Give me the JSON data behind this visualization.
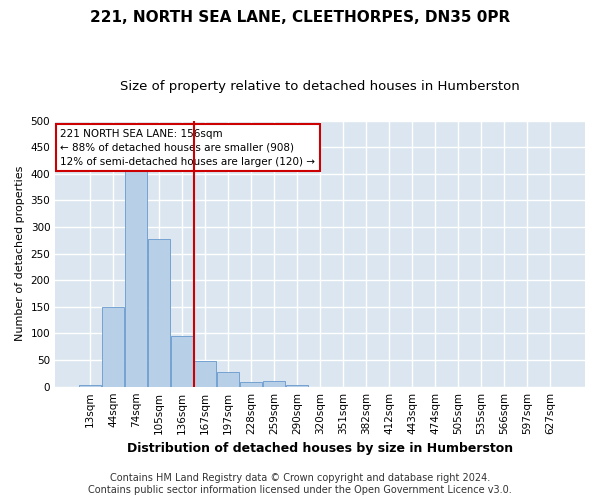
{
  "title": "221, NORTH SEA LANE, CLEETHORPES, DN35 0PR",
  "subtitle": "Size of property relative to detached houses in Humberston",
  "xlabel": "Distribution of detached houses by size in Humberston",
  "ylabel": "Number of detached properties",
  "categories": [
    "13sqm",
    "44sqm",
    "74sqm",
    "105sqm",
    "136sqm",
    "167sqm",
    "197sqm",
    "228sqm",
    "259sqm",
    "290sqm",
    "320sqm",
    "351sqm",
    "382sqm",
    "412sqm",
    "443sqm",
    "474sqm",
    "505sqm",
    "535sqm",
    "566sqm",
    "597sqm",
    "627sqm"
  ],
  "values": [
    4,
    150,
    420,
    278,
    95,
    48,
    28,
    8,
    10,
    4,
    0,
    0,
    0,
    0,
    0,
    0,
    0,
    0,
    0,
    0,
    0
  ],
  "bar_color": "#b8cfe8",
  "bar_edge_color": "#6699cc",
  "vline_x": 4.5,
  "vline_color": "#cc0000",
  "annotation_line1": "221 NORTH SEA LANE: 156sqm",
  "annotation_line2": "← 88% of detached houses are smaller (908)",
  "annotation_line3": "12% of semi-detached houses are larger (120) →",
  "annotation_box_color": "#ffffff",
  "annotation_box_edge": "#cc0000",
  "ylim": [
    0,
    500
  ],
  "yticks": [
    0,
    50,
    100,
    150,
    200,
    250,
    300,
    350,
    400,
    450,
    500
  ],
  "footer": "Contains HM Land Registry data © Crown copyright and database right 2024.\nContains public sector information licensed under the Open Government Licence v3.0.",
  "fig_bg_color": "#ffffff",
  "plot_bg_color": "#dce6f0",
  "grid_color": "#ffffff",
  "title_fontsize": 11,
  "subtitle_fontsize": 9.5,
  "xlabel_fontsize": 9,
  "ylabel_fontsize": 8,
  "footer_fontsize": 7,
  "tick_fontsize": 7.5
}
